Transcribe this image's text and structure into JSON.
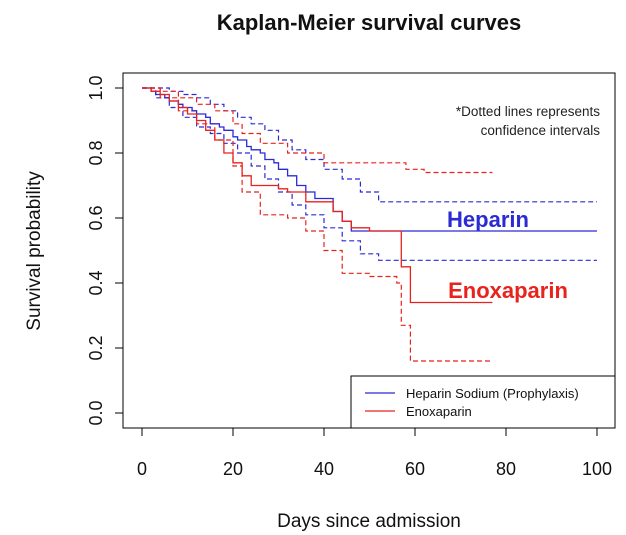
{
  "chart_data": {
    "type": "line",
    "title": "Kaplan-Meier survival curves",
    "xlabel": "Days since admission",
    "ylabel": "Survival probability",
    "xlim": [
      0,
      100
    ],
    "ylim": [
      0,
      1
    ],
    "xticks": [
      "0",
      "20",
      "40",
      "60",
      "80",
      "100"
    ],
    "yticks": [
      "0.0",
      "0.2",
      "0.4",
      "0.6",
      "0.8",
      "1.0"
    ],
    "grid": false,
    "legend_position": "bottom-right",
    "note_lines": [
      "*Dotted lines represents",
      "confidence intervals"
    ],
    "series": [
      {
        "name": "Heparin Sodium (Prophylaxis)",
        "inline_label": "Heparin",
        "color": "#2b2bd6",
        "x": [
          0,
          2,
          3,
          5,
          6,
          8,
          9,
          11,
          12,
          14,
          15,
          17,
          18,
          20,
          21,
          23,
          24,
          26,
          27,
          29,
          30,
          32,
          34,
          36,
          38,
          42,
          44,
          46,
          100
        ],
        "y": [
          1.0,
          0.99,
          0.98,
          0.97,
          0.96,
          0.95,
          0.94,
          0.93,
          0.92,
          0.91,
          0.89,
          0.88,
          0.87,
          0.85,
          0.84,
          0.82,
          0.81,
          0.8,
          0.78,
          0.77,
          0.75,
          0.73,
          0.7,
          0.68,
          0.66,
          0.62,
          0.59,
          0.56,
          0.56
        ],
        "ci_upper_x": [
          0,
          3,
          6,
          9,
          12,
          15,
          18,
          21,
          24,
          27,
          30,
          33,
          36,
          40,
          44,
          48,
          52,
          100
        ],
        "ci_upper_y": [
          1.0,
          1.0,
          0.99,
          0.98,
          0.97,
          0.95,
          0.93,
          0.91,
          0.89,
          0.87,
          0.84,
          0.81,
          0.78,
          0.75,
          0.72,
          0.68,
          0.65,
          0.65
        ],
        "ci_lower_x": [
          0,
          3,
          6,
          9,
          12,
          15,
          18,
          21,
          24,
          27,
          30,
          33,
          36,
          40,
          44,
          48,
          52,
          100
        ],
        "ci_lower_y": [
          1.0,
          0.97,
          0.94,
          0.91,
          0.88,
          0.86,
          0.83,
          0.8,
          0.76,
          0.72,
          0.68,
          0.64,
          0.61,
          0.57,
          0.53,
          0.49,
          0.47,
          0.47
        ]
      },
      {
        "name": "Enoxaparin",
        "inline_label": "Enoxaparin",
        "color": "#e8231d",
        "x": [
          0,
          2,
          4,
          6,
          8,
          10,
          12,
          14,
          16,
          18,
          20,
          22,
          24,
          26,
          28,
          30,
          32,
          36,
          42,
          44,
          46,
          50,
          56,
          57,
          59,
          77
        ],
        "y": [
          1.0,
          0.99,
          0.98,
          0.96,
          0.94,
          0.92,
          0.9,
          0.87,
          0.84,
          0.8,
          0.77,
          0.73,
          0.7,
          0.7,
          0.7,
          0.69,
          0.68,
          0.65,
          0.62,
          0.59,
          0.57,
          0.56,
          0.56,
          0.45,
          0.34,
          0.34
        ],
        "ci_upper_x": [
          0,
          4,
          8,
          12,
          16,
          20,
          22,
          26,
          32,
          36,
          40,
          44,
          50,
          56,
          58,
          62,
          77
        ],
        "ci_upper_y": [
          1.0,
          0.99,
          0.97,
          0.95,
          0.93,
          0.89,
          0.86,
          0.83,
          0.8,
          0.8,
          0.77,
          0.77,
          0.77,
          0.77,
          0.75,
          0.74,
          0.74
        ],
        "ci_lower_x": [
          0,
          4,
          8,
          12,
          16,
          20,
          22,
          26,
          32,
          36,
          40,
          44,
          50,
          56,
          57,
          59,
          77
        ],
        "ci_lower_y": [
          1.0,
          0.97,
          0.93,
          0.89,
          0.84,
          0.76,
          0.68,
          0.61,
          0.6,
          0.56,
          0.5,
          0.43,
          0.42,
          0.4,
          0.27,
          0.16,
          0.16
        ]
      }
    ]
  }
}
